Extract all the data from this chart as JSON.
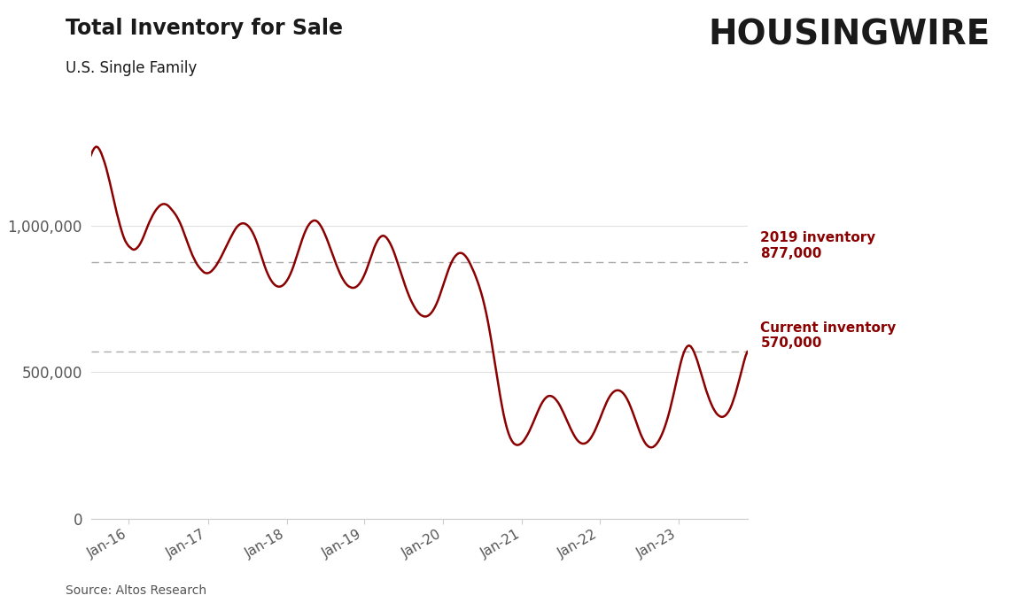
{
  "title": "Total Inventory for Sale",
  "subtitle": "U.S. Single Family",
  "source": "Source: Altos Research",
  "logo_text": "HOUSINGWIRE",
  "line_color": "#8B0000",
  "background_color": "#ffffff",
  "ref_line_color": "#aaaaaa",
  "ref_line_877": 877000,
  "ref_line_570": 570000,
  "ref_label_877": "2019 inventory\n877,000",
  "ref_label_570": "Current inventory\n570,000",
  "ylim": [
    0,
    1400000
  ],
  "ytick_vals": [
    0,
    500000,
    1000000
  ],
  "ytick_labels": [
    "0",
    "500,000",
    "1,000,000"
  ],
  "xtick_labels": [
    "Jan-16",
    "Jan-17",
    "Jan-18",
    "Jan-19",
    "Jan-20",
    "Jan-21",
    "Jan-22",
    "Jan-23"
  ],
  "title_fontsize": 17,
  "subtitle_fontsize": 12,
  "annotation_fontsize": 11,
  "series": [
    1240000,
    1255000,
    1265000,
    1270000,
    1268000,
    1260000,
    1248000,
    1232000,
    1215000,
    1195000,
    1172000,
    1148000,
    1122000,
    1096000,
    1070000,
    1045000,
    1022000,
    1000000,
    980000,
    962000,
    948000,
    938000,
    930000,
    925000,
    920000,
    918000,
    920000,
    925000,
    932000,
    942000,
    954000,
    968000,
    983000,
    998000,
    1012000,
    1024000,
    1036000,
    1046000,
    1055000,
    1062000,
    1068000,
    1072000,
    1074000,
    1074000,
    1072000,
    1068000,
    1062000,
    1055000,
    1048000,
    1040000,
    1031000,
    1020000,
    1008000,
    994000,
    978000,
    962000,
    946000,
    930000,
    915000,
    900000,
    888000,
    876000,
    866000,
    858000,
    851000,
    845000,
    840000,
    838000,
    838000,
    840000,
    844000,
    850000,
    857000,
    865000,
    875000,
    885000,
    896000,
    908000,
    920000,
    932000,
    944000,
    956000,
    967000,
    978000,
    988000,
    996000,
    1002000,
    1006000,
    1008000,
    1008000,
    1006000,
    1002000,
    996000,
    988000,
    978000,
    966000,
    952000,
    936000,
    918000,
    900000,
    882000,
    864000,
    848000,
    834000,
    822000,
    812000,
    804000,
    798000,
    794000,
    792000,
    792000,
    794000,
    798000,
    804000,
    812000,
    822000,
    834000,
    848000,
    864000,
    882000,
    900000,
    918000,
    936000,
    954000,
    970000,
    984000,
    996000,
    1005000,
    1012000,
    1016000,
    1018000,
    1017000,
    1013000,
    1006000,
    997000,
    986000,
    973000,
    959000,
    944000,
    928000,
    912000,
    896000,
    880000,
    864000,
    850000,
    836000,
    824000,
    814000,
    805000,
    798000,
    793000,
    790000,
    788000,
    788000,
    790000,
    794000,
    800000,
    808000,
    818000,
    830000,
    844000,
    860000,
    877000,
    895000,
    912000,
    927000,
    940000,
    951000,
    959000,
    964000,
    966000,
    964000,
    959000,
    951000,
    941000,
    929000,
    915000,
    899000,
    882000,
    864000,
    846000,
    828000,
    810000,
    793000,
    777000,
    762000,
    748000,
    736000,
    725000,
    715000,
    707000,
    700000,
    695000,
    692000,
    690000,
    690000,
    692000,
    696000,
    702000,
    710000,
    720000,
    732000,
    746000,
    762000,
    779000,
    797000,
    815000,
    832000,
    849000,
    864000,
    877000,
    888000,
    896000,
    902000,
    906000,
    907000,
    906000,
    902000,
    896000,
    888000,
    878000,
    866000,
    853000,
    840000,
    825000,
    809000,
    792000,
    773000,
    752000,
    728000,
    702000,
    673000,
    641000,
    607000,
    571000,
    534000,
    497000,
    460000,
    424000,
    391000,
    360000,
    333000,
    310000,
    291000,
    276000,
    265000,
    257000,
    253000,
    251000,
    252000,
    255000,
    260000,
    267000,
    276000,
    286000,
    297000,
    310000,
    323000,
    337000,
    351000,
    365000,
    378000,
    390000,
    400000,
    408000,
    414000,
    418000,
    419000,
    418000,
    415000,
    410000,
    403000,
    395000,
    385000,
    373000,
    361000,
    348000,
    335000,
    322000,
    309000,
    297000,
    286000,
    276000,
    268000,
    262000,
    258000,
    256000,
    256000,
    258000,
    262000,
    268000,
    276000,
    286000,
    297000,
    310000,
    324000,
    338000,
    353000,
    368000,
    382000,
    396000,
    408000,
    418000,
    426000,
    432000,
    436000,
    438000,
    438000,
    436000,
    432000,
    426000,
    418000,
    408000,
    396000,
    382000,
    367000,
    351000,
    335000,
    318000,
    302000,
    287000,
    274000,
    263000,
    254000,
    248000,
    244000,
    243000,
    244000,
    248000,
    254000,
    262000,
    272000,
    284000,
    298000,
    314000,
    332000,
    352000,
    374000,
    398000,
    423000,
    450000,
    476000,
    502000,
    527000,
    549000,
    567000,
    580000,
    588000,
    591000,
    588000,
    580000,
    568000,
    553000,
    536000,
    517000,
    497000,
    477000,
    457000,
    438000,
    421000,
    405000,
    391000,
    378000,
    368000,
    359000,
    353000,
    349000,
    347000,
    348000,
    351000,
    357000,
    365000,
    376000,
    390000,
    407000,
    425000,
    446000,
    468000,
    490000,
    513000,
    536000,
    556000,
    570000
  ]
}
